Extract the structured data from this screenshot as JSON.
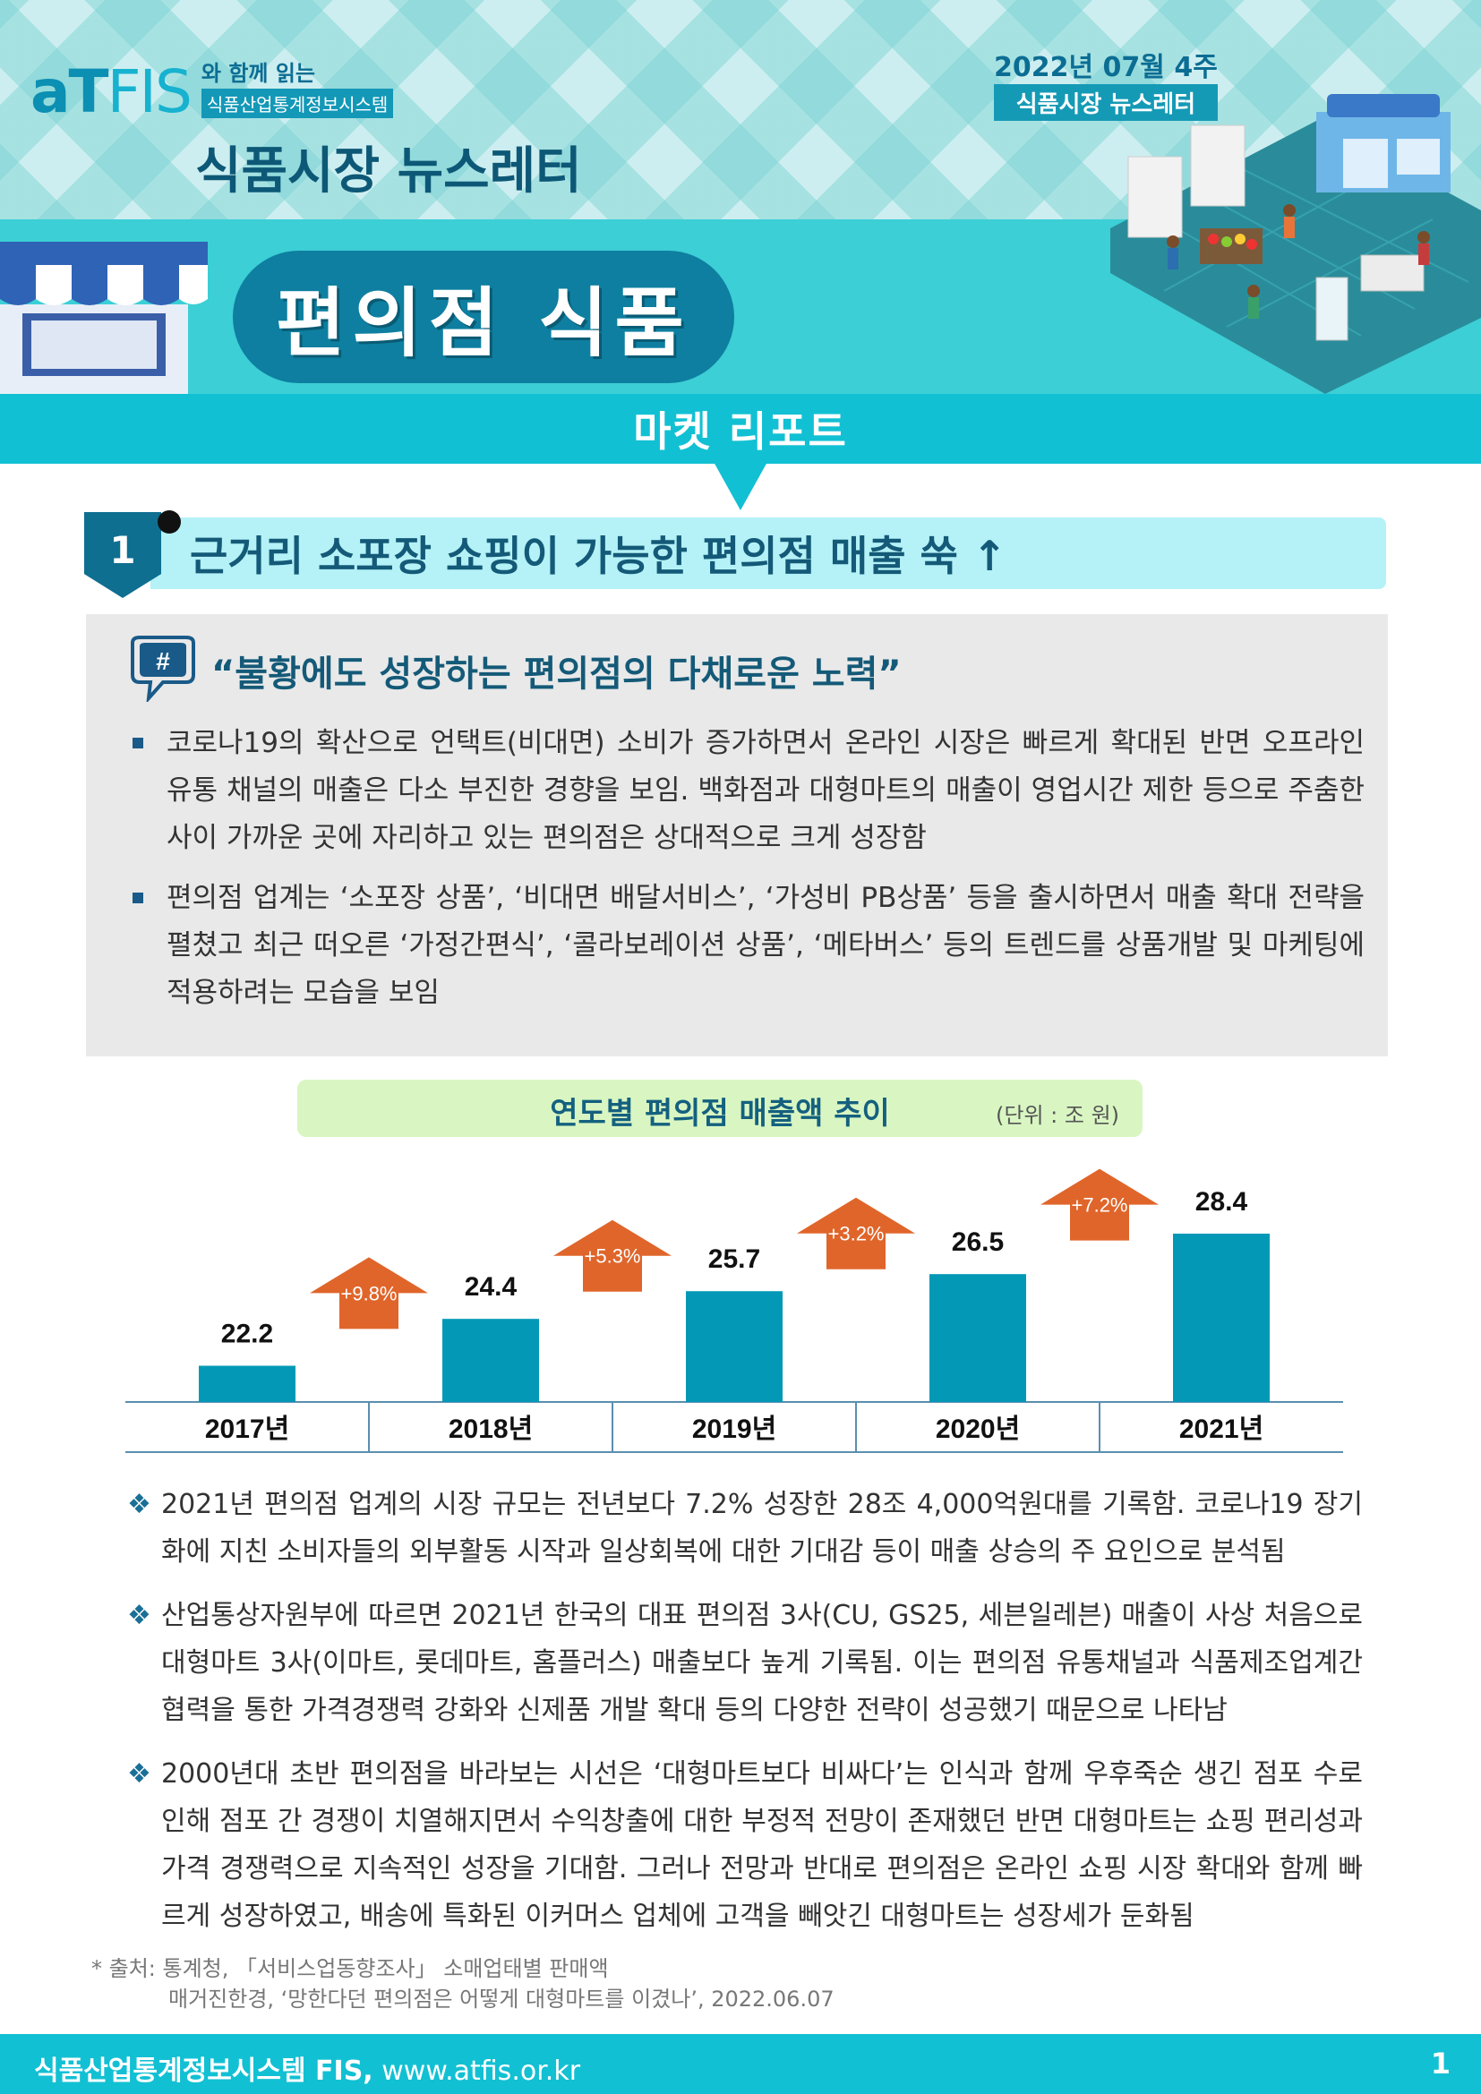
{
  "header": {
    "logo_at": "aT",
    "logo_fis": "FIS",
    "logo_line1": "와 함께 읽는",
    "logo_line2": "식품산업통계정보시스템",
    "newsletter_title": "식품시장 뉴스레터",
    "date_line": "2022년 07월 4주",
    "date_badge": "식품시장 뉴스레터",
    "main_title": "편의점 식품",
    "report_label": "마켓 리포트"
  },
  "section": {
    "number": "1",
    "title": "근거리 소포장 쇼핑이 가능한 편의점 매출 쑥 ↑"
  },
  "summary": {
    "quote_icon": "#",
    "quote": "“불황에도 성장하는 편의점의 다채로운 노력”",
    "bullets": [
      "코로나19의 확산으로 언택트(비대면) 소비가 증가하면서 온라인 시장은 빠르게 확대된 반면 오프라인 유통 채널의 매출은 다소 부진한 경향을 보임. 백화점과 대형마트의 매출이 영업시간 제한 등으로 주춤한 사이 가까운 곳에 자리하고 있는 편의점은 상대적으로 크게 성장함",
      "편의점 업계는 ‘소포장 상품’, ‘비대면 배달서비스’, ‘가성비 PB상품’ 등을 출시하면서 매출 확대 전략을 펼쳤고 최근 떠오른 ‘가정간편식’, ‘콜라보레이션 상품’, ‘메타버스’ 등의 트렌드를 상품개발 및 마케팅에 적용하려는 모습을 보임"
    ]
  },
  "chart_data": {
    "type": "bar",
    "title": "연도별 편의점 매출액 추이",
    "unit": "(단위 : 조 원)",
    "categories": [
      "2017년",
      "2018년",
      "2019년",
      "2020년",
      "2021년"
    ],
    "values": [
      22.2,
      24.4,
      25.7,
      26.5,
      28.4
    ],
    "value_labels": [
      "22.2",
      "24.4",
      "25.7",
      "26.5",
      "28.4"
    ],
    "growth_labels": [
      "+9.8%",
      "+5.3%",
      "+3.2%",
      "+7.2%"
    ],
    "bar_color": "#0399b6",
    "arrow_color": "#e0652a"
  },
  "notes": {
    "mark": "❖",
    "items": [
      "2021년 편의점 업계의 시장 규모는 전년보다 7.2% 성장한 28조 4,000억원대를 기록함. 코로나19 장기화에 지친 소비자들의 외부활동 시작과 일상회복에 대한 기대감 등이 매출 상승의 주 요인으로 분석됨",
      "산업통상자원부에 따르면 2021년 한국의 대표 편의점 3사(CU, GS25, 세븐일레븐) 매출이 사상 처음으로 대형마트 3사(이마트, 롯데마트, 홈플러스) 매출보다 높게 기록됨. 이는 편의점 유통채널과 식품제조업계간 협력을 통한 가격경쟁력 강화와 신제품 개발 확대 등의 다양한 전략이 성공했기 때문으로 나타남",
      "2000년대 초반 편의점을 바라보는 시선은 ‘대형마트보다 비싸다’는 인식과 함께 우후죽순 생긴 점포 수로 인해 점포 간 경쟁이 치열해지면서 수익창출에 대한 부정적 전망이 존재했던 반면 대형마트는 쇼핑 편리성과 가격 경쟁력으로 지속적인 성장을 기대함. 그러나 전망과 반대로 편의점은 온라인 쇼핑 시장 확대와 함께 빠르게 성장하였고, 배송에 특화된 이커머스 업체에 고객을 빼앗긴 대형마트는 성장세가 둔화됨"
    ]
  },
  "source": {
    "line1": "* 출처: 통계청, 「서비스업동향조사」 소매업태별 판매액",
    "line2": "매거진한경, ‘망한다던 편의점은 어떻게 대형마트를 이겼나’, 2022.06.07"
  },
  "footer": {
    "org": "식품산업통계정보시스템 FIS,",
    "url": "www.atfis.or.kr",
    "page": "1"
  }
}
